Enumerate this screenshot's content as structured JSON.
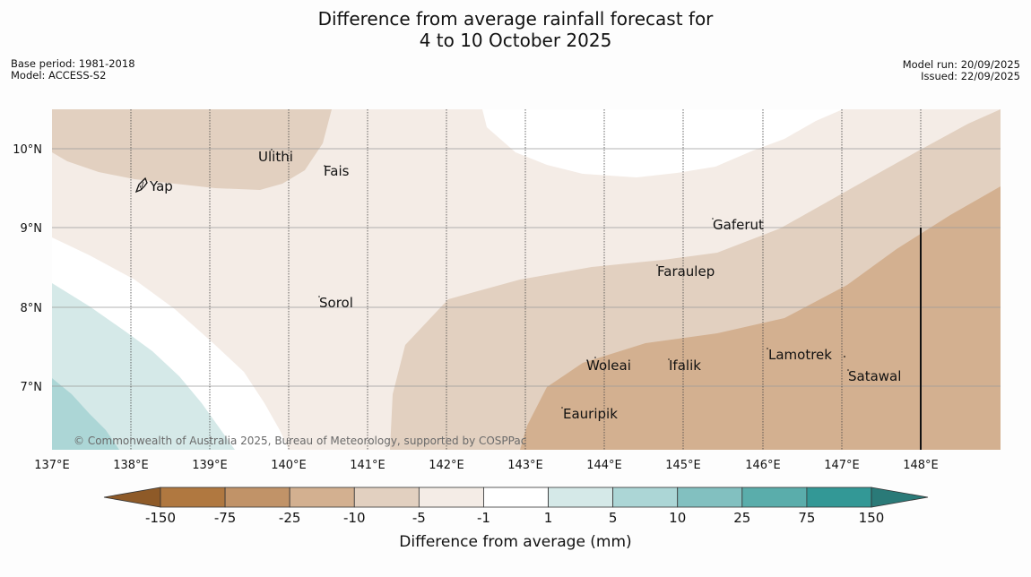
{
  "title": {
    "line1": "Difference from average rainfall forecast for",
    "line2": "4 to 10 October 2025"
  },
  "meta": {
    "base_period": "Base period: 1981-2018",
    "model": "Model: ACCESS-S2",
    "model_run": "Model run: 20/09/2025",
    "issued": "Issued: 22/09/2025"
  },
  "map": {
    "lat_labels": [
      "10°N",
      "9°N",
      "8°N",
      "7°N"
    ],
    "lon_labels": [
      "137°E",
      "138°E",
      "139°E",
      "140°E",
      "141°E",
      "142°E",
      "143°E",
      "144°E",
      "145°E",
      "146°E",
      "147°E",
      "148°E"
    ],
    "places": [
      "Yap",
      "Ulithi",
      "Fais",
      "Gaferut",
      "Faraulep",
      "Sorol",
      "Woleai",
      "Ifalik",
      "Lamotrek",
      "Satawal",
      "Eauripik"
    ],
    "copyright": "© Commonwealth of Australia 2025, Bureau of Meteorology, supported by COSPPac"
  },
  "colorbar": {
    "ticks": [
      "-150",
      "-75",
      "-25",
      "-10",
      "-5",
      "-1",
      "1",
      "5",
      "10",
      "25",
      "75",
      "150"
    ],
    "colors": [
      "#8e5a28",
      "#b07840",
      "#c19368",
      "#d3b090",
      "#e2d0c0",
      "#f4ece6",
      "#ffffff",
      "#d5e9e8",
      "#acd6d6",
      "#82c0c0",
      "#5aadab",
      "#339896",
      "#2a7a78"
    ],
    "title": "Difference from average (mm)"
  }
}
